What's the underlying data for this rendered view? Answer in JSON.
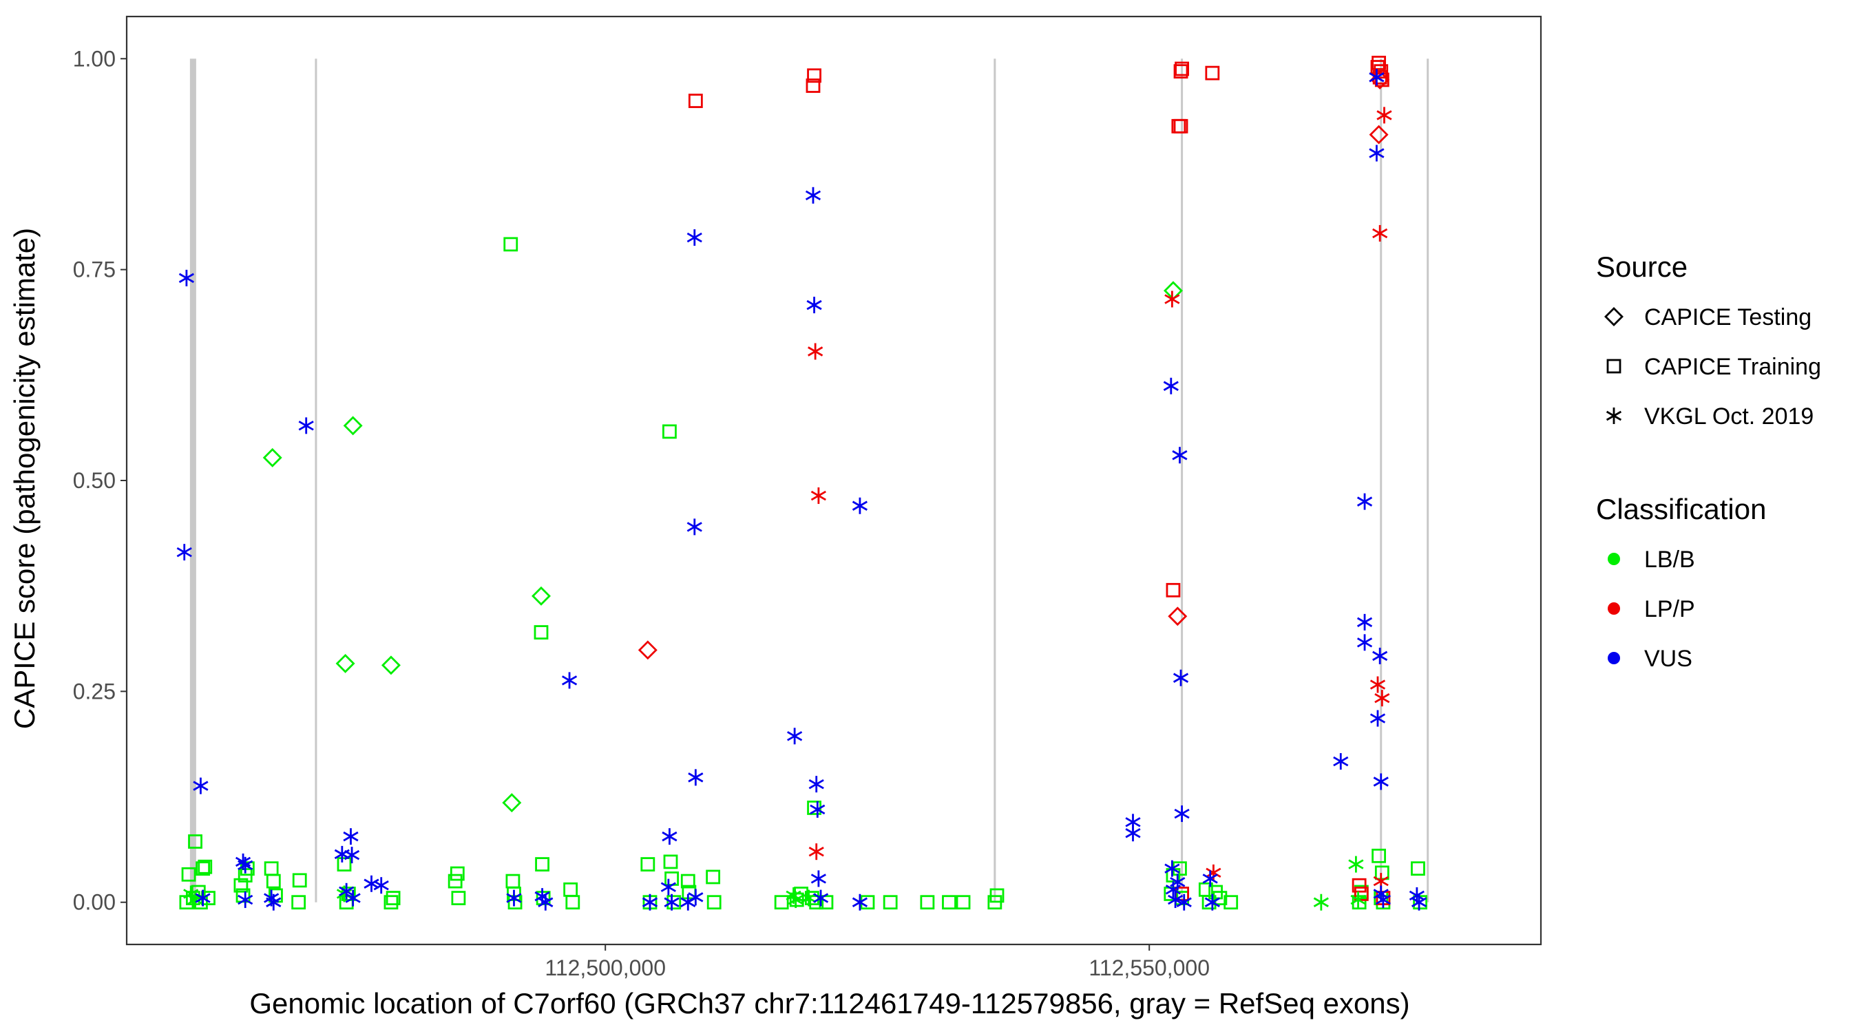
{
  "chart_data": {
    "type": "scatter",
    "xlabel": "Genomic location of C7orf60 (GRCh37 chr7:112461749-112579856, gray = RefSeq exons)",
    "ylabel": "CAPICE score (pathogenicity estimate)",
    "xlim": [
      112456000,
      112586000
    ],
    "ylim": [
      -0.05,
      1.05
    ],
    "x_ticks": [
      112500000,
      112550000
    ],
    "x_tick_labels": [
      "112,500,000",
      "112,550,000"
    ],
    "y_ticks": [
      0,
      0.25,
      0.5,
      0.75,
      1.0
    ],
    "y_tick_labels": [
      "0.00",
      "0.25",
      "0.50",
      "0.75",
      "1.00"
    ],
    "grid": false,
    "exons": [
      112462100,
      112473400,
      112535800,
      112553000,
      112571300,
      112575600
    ],
    "legend_position": "right",
    "legends": [
      {
        "title": "Source",
        "entries": [
          {
            "label": "CAPICE Testing",
            "shape": "diamond"
          },
          {
            "label": "CAPICE Training",
            "shape": "square"
          },
          {
            "label": "VKGL Oct. 2019",
            "shape": "star"
          }
        ]
      },
      {
        "title": "Classification",
        "entries": [
          {
            "label": "LB/B",
            "color": "#00ee00"
          },
          {
            "label": "LP/P",
            "color": "#ee0000"
          },
          {
            "label": "VUS",
            "color": "#0000ee"
          }
        ]
      }
    ],
    "colors": {
      "LB/B": "#00ee00",
      "LP/P": "#ee0000",
      "VUS": "#0000ee",
      "exon": "#c8c8c8"
    },
    "series": [
      {
        "source": "CAPICE Testing",
        "classification": "LB/B",
        "points": [
          [
            112469400,
            0.527
          ],
          [
            112476100,
            0.283
          ],
          [
            112476800,
            0.565
          ],
          [
            112480300,
            0.281
          ],
          [
            112491400,
            0.118
          ],
          [
            112494100,
            0.363
          ],
          [
            112552200,
            0.725
          ]
        ]
      },
      {
        "source": "CAPICE Testing",
        "classification": "LP/P",
        "points": [
          [
            112503900,
            0.299
          ],
          [
            112552600,
            0.339
          ],
          [
            112571100,
            0.91
          ],
          [
            112571200,
            0.975
          ]
        ]
      },
      {
        "source": "CAPICE Training",
        "classification": "LB/B",
        "points": [
          [
            112461500,
            0.0
          ],
          [
            112461700,
            0.033
          ],
          [
            112462100,
            0.005
          ],
          [
            112462300,
            0.072
          ],
          [
            112462600,
            0.012
          ],
          [
            112462800,
            0.0
          ],
          [
            112463000,
            0.04
          ],
          [
            112463200,
            0.042
          ],
          [
            112463500,
            0.005
          ],
          [
            112466500,
            0.02
          ],
          [
            112466700,
            0.008
          ],
          [
            112466900,
            0.032
          ],
          [
            112467100,
            0.04
          ],
          [
            112469300,
            0.04
          ],
          [
            112469500,
            0.025
          ],
          [
            112469700,
            0.008
          ],
          [
            112471800,
            0.0
          ],
          [
            112471900,
            0.026
          ],
          [
            112476000,
            0.045
          ],
          [
            112476200,
            0.0
          ],
          [
            112476400,
            0.01
          ],
          [
            112480300,
            0.0
          ],
          [
            112480500,
            0.005
          ],
          [
            112486200,
            0.025
          ],
          [
            112486400,
            0.034
          ],
          [
            112486500,
            0.005
          ],
          [
            112491300,
            0.78
          ],
          [
            112491500,
            0.025
          ],
          [
            112491600,
            0.01
          ],
          [
            112491700,
            0.0
          ],
          [
            112494100,
            0.32
          ],
          [
            112494200,
            0.045
          ],
          [
            112494300,
            0.005
          ],
          [
            112496800,
            0.015
          ],
          [
            112497000,
            0.0
          ],
          [
            112503900,
            0.045
          ],
          [
            112504100,
            0.0
          ],
          [
            112505900,
            0.558
          ],
          [
            112506000,
            0.048
          ],
          [
            112506100,
            0.028
          ],
          [
            112506300,
            0.0
          ],
          [
            112507600,
            0.025
          ],
          [
            112507700,
            0.012
          ],
          [
            112509900,
            0.03
          ],
          [
            112510000,
            0.0
          ],
          [
            112516200,
            0.0
          ],
          [
            112517600,
            0.003
          ],
          [
            112518000,
            0.01
          ],
          [
            112519000,
            0.005
          ],
          [
            112519200,
            0.112
          ],
          [
            112519400,
            0.0
          ],
          [
            112520300,
            0.0
          ],
          [
            112524100,
            0.0
          ],
          [
            112526200,
            0.0
          ],
          [
            112529600,
            0.0
          ],
          [
            112531600,
            0.0
          ],
          [
            112532900,
            0.0
          ],
          [
            112535800,
            0.0
          ],
          [
            112536000,
            0.008
          ],
          [
            112552000,
            0.01
          ],
          [
            112552200,
            0.032
          ],
          [
            112552800,
            0.04
          ],
          [
            112553000,
            0.005
          ],
          [
            112555200,
            0.015
          ],
          [
            112555500,
            0.0
          ],
          [
            112556100,
            0.012
          ],
          [
            112556500,
            0.005
          ],
          [
            112557500,
            0.0
          ],
          [
            112569300,
            0.0
          ],
          [
            112569500,
            0.012
          ],
          [
            112571100,
            0.055
          ],
          [
            112571300,
            0.005
          ],
          [
            112571400,
            0.035
          ],
          [
            112571500,
            0.0
          ],
          [
            112574700,
            0.04
          ],
          [
            112574900,
            0.0
          ]
        ]
      },
      {
        "source": "CAPICE Training",
        "classification": "LP/P",
        "points": [
          [
            112508300,
            0.95
          ],
          [
            112519100,
            0.968
          ],
          [
            112519200,
            0.98
          ],
          [
            112552200,
            0.37
          ],
          [
            112552700,
            0.92
          ],
          [
            112552900,
            0.92
          ],
          [
            112552900,
            0.985
          ],
          [
            112553000,
            0.988
          ],
          [
            112555800,
            0.983
          ],
          [
            112553000,
            0.01
          ],
          [
            112569300,
            0.02
          ],
          [
            112569500,
            0.01
          ],
          [
            112571000,
            0.99
          ],
          [
            112571100,
            0.995
          ],
          [
            112571200,
            0.978
          ],
          [
            112571300,
            0.985
          ],
          [
            112571400,
            0.975
          ],
          [
            112571500,
            0.005
          ]
        ]
      },
      {
        "source": "VKGL Oct. 2019",
        "classification": "LB/B",
        "points": [
          [
            112461900,
            0.01
          ],
          [
            112462300,
            0.003
          ],
          [
            112476000,
            0.01
          ],
          [
            112517300,
            0.008
          ],
          [
            112517500,
            0.003
          ],
          [
            112518700,
            0.005
          ],
          [
            112565800,
            0.0
          ],
          [
            112569000,
            0.045
          ],
          [
            112569200,
            0.003
          ]
        ]
      },
      {
        "source": "VKGL Oct. 2019",
        "classification": "LP/P",
        "points": [
          [
            112519300,
            0.653
          ],
          [
            112519400,
            0.06
          ],
          [
            112519600,
            0.482
          ],
          [
            112552100,
            0.715
          ],
          [
            112555900,
            0.035
          ],
          [
            112571000,
            0.258
          ],
          [
            112571200,
            0.793
          ],
          [
            112571300,
            0.025
          ],
          [
            112571400,
            0.242
          ],
          [
            112571600,
            0.933
          ]
        ]
      },
      {
        "source": "VKGL Oct. 2019",
        "classification": "VUS",
        "points": [
          [
            112461500,
            0.74
          ],
          [
            112461300,
            0.415
          ],
          [
            112462800,
            0.138
          ],
          [
            112463000,
            0.005
          ],
          [
            112466700,
            0.048
          ],
          [
            112466900,
            0.044
          ],
          [
            112466900,
            0.003
          ],
          [
            112469300,
            0.005
          ],
          [
            112469500,
            0.0
          ],
          [
            112472500,
            0.565
          ],
          [
            112475800,
            0.057
          ],
          [
            112476200,
            0.013
          ],
          [
            112476600,
            0.078
          ],
          [
            112476700,
            0.056
          ],
          [
            112476800,
            0.005
          ],
          [
            112478500,
            0.022
          ],
          [
            112479400,
            0.02
          ],
          [
            112491600,
            0.005
          ],
          [
            112494200,
            0.007
          ],
          [
            112494500,
            0.0
          ],
          [
            112496700,
            0.263
          ],
          [
            112504100,
            0.0
          ],
          [
            112505800,
            0.018
          ],
          [
            112505900,
            0.078
          ],
          [
            112506100,
            0.0
          ],
          [
            112507600,
            0.0
          ],
          [
            112508200,
            0.788
          ],
          [
            112508200,
            0.445
          ],
          [
            112508300,
            0.148
          ],
          [
            112508300,
            0.006
          ],
          [
            112517400,
            0.197
          ],
          [
            112519100,
            0.838
          ],
          [
            112519200,
            0.708
          ],
          [
            112519400,
            0.14
          ],
          [
            112519500,
            0.11
          ],
          [
            112519600,
            0.028
          ],
          [
            112519800,
            0.005
          ],
          [
            112523400,
            0.47
          ],
          [
            112523400,
            0.0
          ],
          [
            112548500,
            0.095
          ],
          [
            112548500,
            0.082
          ],
          [
            112552000,
            0.612
          ],
          [
            112552100,
            0.04
          ],
          [
            112552200,
            0.015
          ],
          [
            112552400,
            0.003
          ],
          [
            112552600,
            0.024
          ],
          [
            112552800,
            0.53
          ],
          [
            112552900,
            0.266
          ],
          [
            112553000,
            0.105
          ],
          [
            112553200,
            0.0
          ],
          [
            112555600,
            0.028
          ],
          [
            112555800,
            0.0
          ],
          [
            112567600,
            0.167
          ],
          [
            112569800,
            0.475
          ],
          [
            112569800,
            0.332
          ],
          [
            112569800,
            0.308
          ],
          [
            112570900,
            0.978
          ],
          [
            112570900,
            0.888
          ],
          [
            112571200,
            0.292
          ],
          [
            112571000,
            0.218
          ],
          [
            112571300,
            0.143
          ],
          [
            112571300,
            0.01
          ],
          [
            112571500,
            0.003
          ],
          [
            112574600,
            0.008
          ],
          [
            112574800,
            0.0
          ]
        ]
      }
    ]
  }
}
